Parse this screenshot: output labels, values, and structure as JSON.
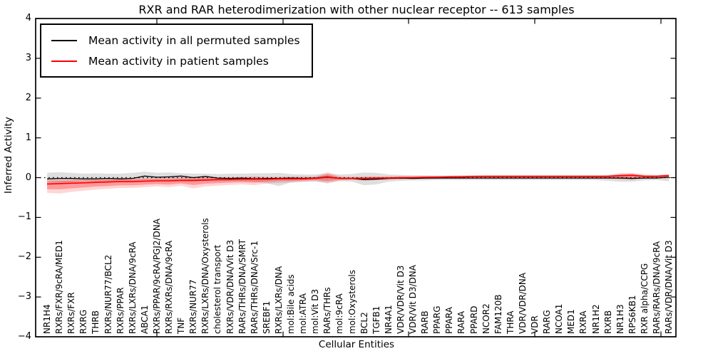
{
  "title": "RXR and RAR heterodimerization with other nuclear receptor -- 613 samples",
  "chart_data": {
    "type": "line",
    "title": "RXR and RAR heterodimerization with other nuclear receptor -- 613 samples",
    "xlabel": "Cellular Entities",
    "ylabel": "Inferred Activity",
    "ylim": [
      -4,
      4
    ],
    "yticks": [
      4,
      3,
      2,
      1,
      0,
      -1,
      -2,
      -3,
      -4
    ],
    "grid": false,
    "legend_position": "upper left",
    "zero_line": {
      "style": "dotted",
      "color": "#000000"
    },
    "categories": [
      "NR1H4",
      "RXRs/FXR/9cRA/MED1",
      "RXRs/FXR",
      "RXRG",
      "THRB",
      "RXRs/NUR77/BCL2",
      "RXRs/PPAR",
      "RXRs/LXRs/DNA/9cRA",
      "ABCA1",
      "RXRs/PPAR/9cRA/PGJ2/DNA",
      "RXRs/RXRs/DNA/9cRA",
      "TNF",
      "RXRs/NUR77",
      "RXRs/LXRs/DNA/Oxysterols",
      "cholesterol transport",
      "RXRs/VDR/DNA/Vit D3",
      "RARs/THRs/DNA/SMRT",
      "RARs/THRs/DNA/Src-1",
      "SREBF1",
      "RXRs/LXRs/DNA",
      "mol:Bile acids",
      "mol:ATRA",
      "mol:Vit D3",
      "RARs/THRs",
      "mol:9cRA",
      "mol:Oxysterols",
      "BCL2",
      "TGFB1",
      "NR4A1",
      "VDR/VDR/Vit D3",
      "VDR/Vit D3/DNA",
      "RARB",
      "PPARG",
      "PPARA",
      "RARA",
      "PPARD",
      "NCOR2",
      "FAM120B",
      "THRA",
      "VDR/VDR/DNA",
      "VDR",
      "RARG",
      "NCOA1",
      "MED1",
      "RXRA",
      "NR1H2",
      "RXRB",
      "NR1H3",
      "RPS6KB1",
      "RXR alpha/CCPG",
      "RARs/RARs/DNA/9cRA",
      "RARs/VDR/DNA/Vit D3"
    ],
    "series": [
      {
        "name": "Mean activity in all permuted samples",
        "color": "#000000",
        "values": [
          -0.03,
          -0.02,
          -0.02,
          -0.03,
          -0.03,
          -0.02,
          -0.03,
          -0.02,
          0.04,
          0.01,
          0.02,
          0.04,
          0.0,
          0.03,
          -0.01,
          -0.02,
          -0.01,
          -0.03,
          -0.02,
          -0.02,
          -0.01,
          -0.02,
          -0.01,
          0.02,
          -0.02,
          -0.02,
          -0.05,
          -0.04,
          -0.02,
          -0.01,
          -0.02,
          -0.01,
          -0.01,
          -0.01,
          -0.01,
          -0.01,
          -0.01,
          -0.01,
          -0.01,
          -0.01,
          -0.01,
          -0.01,
          -0.01,
          -0.01,
          -0.01,
          -0.01,
          -0.01,
          -0.01,
          -0.02,
          -0.01,
          -0.01,
          0.01
        ]
      },
      {
        "name": "Mean activity in patient samples",
        "color": "#ff0000",
        "values": [
          -0.16,
          -0.15,
          -0.14,
          -0.13,
          -0.12,
          -0.11,
          -0.1,
          -0.1,
          -0.09,
          -0.08,
          -0.08,
          -0.07,
          -0.07,
          -0.06,
          -0.05,
          -0.05,
          -0.04,
          -0.04,
          -0.04,
          -0.03,
          -0.03,
          -0.03,
          -0.02,
          0.01,
          -0.02,
          -0.02,
          -0.02,
          -0.01,
          -0.01,
          0.0,
          0.0,
          0.01,
          0.01,
          0.02,
          0.02,
          0.03,
          0.03,
          0.03,
          0.03,
          0.03,
          0.03,
          0.03,
          0.03,
          0.03,
          0.03,
          0.03,
          0.03,
          0.05,
          0.06,
          0.03,
          0.03,
          0.05
        ]
      }
    ],
    "bands": [
      {
        "name": "permuted-samples-range",
        "color": "#888888",
        "opacity": 0.28,
        "lower": [
          -0.1,
          -0.13,
          -0.11,
          -0.09,
          -0.1,
          -0.09,
          -0.1,
          -0.09,
          -0.08,
          -0.09,
          -0.1,
          -0.09,
          -0.1,
          -0.08,
          -0.09,
          -0.08,
          -0.09,
          -0.1,
          -0.14,
          -0.21,
          -0.12,
          -0.1,
          -0.1,
          -0.12,
          -0.09,
          -0.1,
          -0.19,
          -0.17,
          -0.1,
          -0.08,
          -0.07,
          -0.07,
          -0.06,
          -0.06,
          -0.06,
          -0.06,
          -0.06,
          -0.06,
          -0.06,
          -0.06,
          -0.06,
          -0.06,
          -0.06,
          -0.06,
          -0.06,
          -0.06,
          -0.08,
          -0.1,
          -0.1,
          -0.07,
          -0.06,
          -0.09
        ],
        "upper": [
          0.12,
          0.14,
          0.12,
          0.1,
          0.11,
          0.1,
          0.1,
          0.12,
          0.15,
          0.12,
          0.13,
          0.11,
          0.1,
          0.1,
          0.09,
          0.1,
          0.1,
          0.11,
          0.11,
          0.12,
          0.09,
          0.08,
          0.08,
          0.1,
          0.08,
          0.09,
          0.13,
          0.12,
          0.08,
          0.07,
          0.06,
          0.06,
          0.05,
          0.05,
          0.05,
          0.05,
          0.05,
          0.05,
          0.05,
          0.05,
          0.05,
          0.05,
          0.05,
          0.05,
          0.05,
          0.05,
          0.06,
          0.07,
          0.07,
          0.06,
          0.06,
          0.07
        ]
      },
      {
        "name": "patient-samples-range",
        "color": "#ff0000",
        "opacity": 0.16,
        "lower": [
          -0.38,
          -0.4,
          -0.36,
          -0.33,
          -0.3,
          -0.28,
          -0.26,
          -0.26,
          -0.24,
          -0.22,
          -0.24,
          -0.2,
          -0.27,
          -0.22,
          -0.2,
          -0.18,
          -0.17,
          -0.19,
          -0.15,
          -0.13,
          -0.12,
          -0.1,
          -0.08,
          -0.15,
          -0.07,
          -0.06,
          -0.07,
          -0.06,
          -0.05,
          -0.05,
          -0.04,
          -0.04,
          -0.03,
          -0.02,
          -0.02,
          -0.01,
          -0.01,
          -0.01,
          -0.01,
          -0.01,
          -0.01,
          -0.01,
          -0.01,
          -0.01,
          -0.01,
          -0.01,
          -0.02,
          -0.05,
          -0.06,
          -0.02,
          -0.01,
          -0.02
        ],
        "upper": [
          -0.04,
          -0.04,
          -0.03,
          -0.03,
          -0.02,
          -0.02,
          -0.01,
          -0.01,
          0.0,
          0.0,
          0.01,
          0.01,
          0.02,
          0.02,
          0.01,
          0.01,
          0.02,
          0.03,
          0.02,
          0.02,
          0.03,
          0.03,
          0.03,
          0.14,
          0.03,
          0.02,
          0.03,
          0.03,
          0.03,
          0.04,
          0.04,
          0.04,
          0.05,
          0.05,
          0.06,
          0.06,
          0.07,
          0.07,
          0.07,
          0.07,
          0.07,
          0.07,
          0.07,
          0.07,
          0.07,
          0.07,
          0.07,
          0.11,
          0.12,
          0.08,
          0.07,
          0.09
        ]
      }
    ]
  }
}
